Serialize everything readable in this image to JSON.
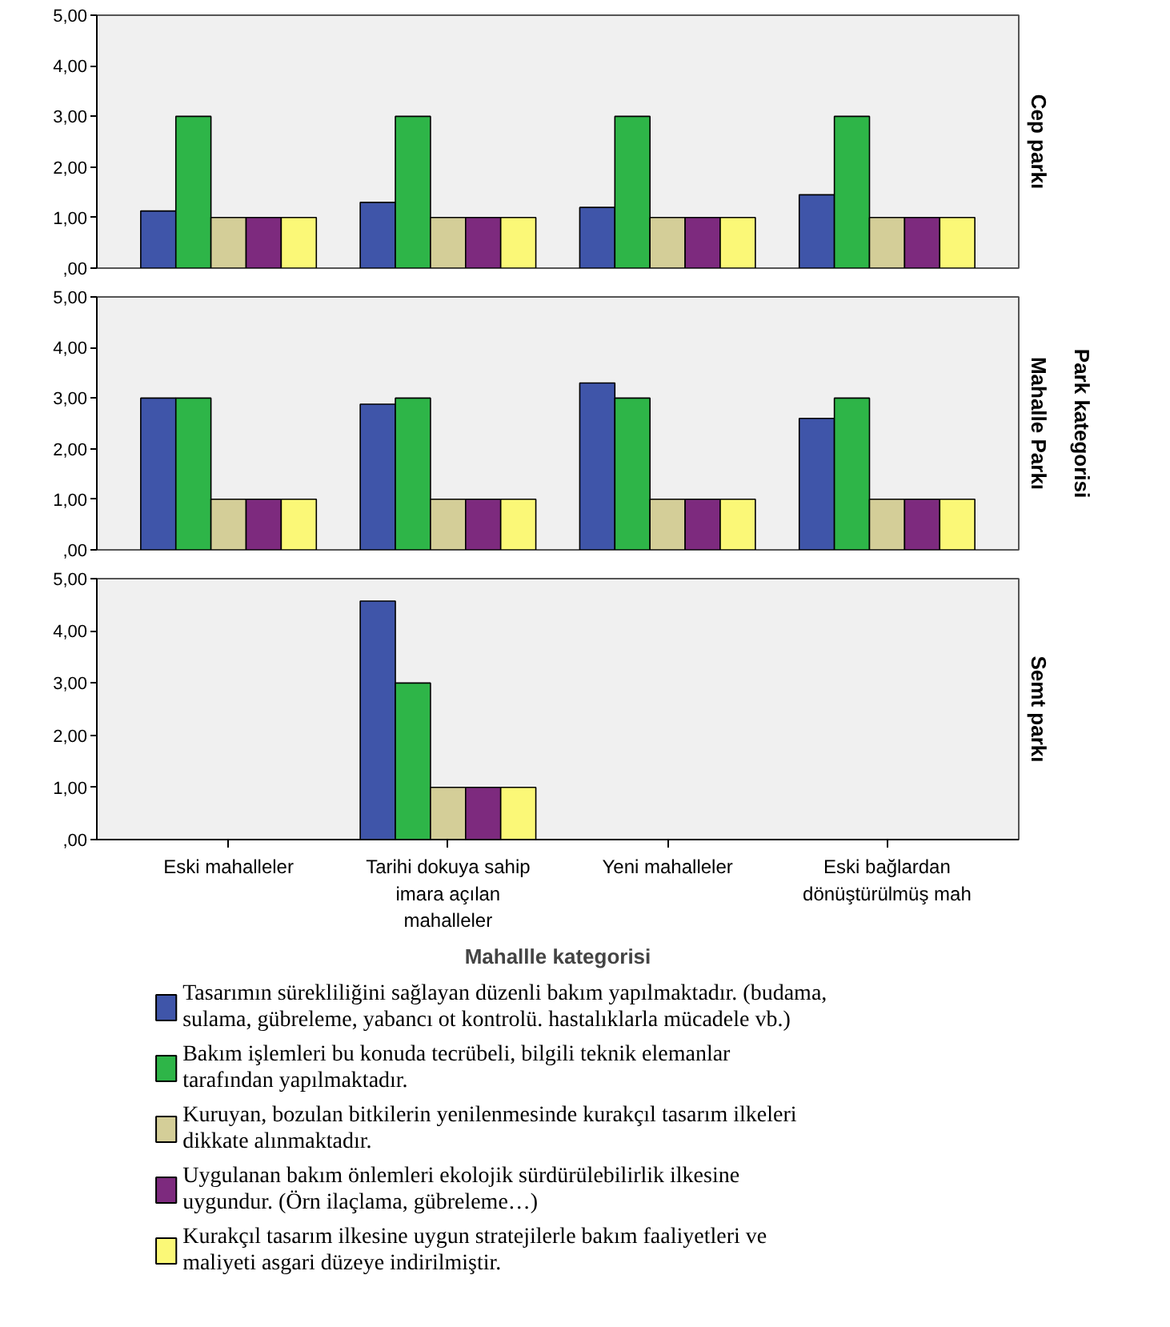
{
  "chart_data": [
    {
      "type": "bar",
      "title": "Cep parkı",
      "categories": [
        null,
        null,
        null,
        null
      ],
      "tick_labels": "y",
      "ylim": [
        0,
        5
      ],
      "yticks": [
        {
          "value": 0,
          "label": ",00"
        },
        {
          "value": 1,
          "label": "1,00"
        },
        {
          "value": 2,
          "label": "2,00"
        },
        {
          "value": 3,
          "label": "3,00"
        },
        {
          "value": 4,
          "label": "4,00"
        },
        {
          "value": 5,
          "label": "5,00"
        }
      ],
      "series": [
        {
          "color": "#3f55a9",
          "values": [
            1.13,
            1.3,
            1.2,
            1.45
          ]
        },
        {
          "color": "#2eb548",
          "values": [
            3,
            3,
            3,
            3
          ]
        },
        {
          "color": "#d4ce98",
          "values": [
            1,
            1,
            1,
            1
          ]
        },
        {
          "color": "#7d2a7e",
          "values": [
            1,
            1,
            1,
            1
          ]
        },
        {
          "color": "#fbf877",
          "values": [
            1,
            1,
            1,
            1
          ]
        }
      ]
    },
    {
      "type": "bar",
      "title": "Mahalle Parkı",
      "annotations": [
        "Park kategorisi"
      ],
      "categories": [
        null,
        null,
        null,
        null
      ],
      "tick_labels": "y",
      "ylim": [
        0,
        5
      ],
      "yticks": [
        {
          "value": 0,
          "label": ",00"
        },
        {
          "value": 1,
          "label": "1,00"
        },
        {
          "value": 2,
          "label": "2,00"
        },
        {
          "value": 3,
          "label": "3,00"
        },
        {
          "value": 4,
          "label": "4,00"
        },
        {
          "value": 5,
          "label": "5,00"
        }
      ],
      "series": [
        {
          "color": "#3f55a9",
          "values": [
            3,
            2.88,
            3.3,
            2.6
          ]
        },
        {
          "color": "#2eb548",
          "values": [
            3,
            3,
            3,
            3
          ]
        },
        {
          "color": "#d4ce98",
          "values": [
            1,
            1,
            1,
            1
          ]
        },
        {
          "color": "#7d2a7e",
          "values": [
            1,
            1,
            1,
            1
          ]
        },
        {
          "color": "#fbf877",
          "values": [
            1,
            1,
            1,
            1
          ]
        }
      ]
    },
    {
      "type": "bar",
      "title": "Semt parkı",
      "xlabel": "Mahallle kategorisi",
      "legend": "bottom",
      "categories": [
        "Eski mahalleler",
        "Tarihi dokuya sahip imara açılan mahalleler",
        "Yeni mahalleler",
        "Eski bağlardan dönüştürülmüş mah"
      ],
      "ylim": [
        0,
        5
      ],
      "yticks": [
        {
          "value": 0,
          "label": ",00"
        },
        {
          "value": 1,
          "label": "1,00"
        },
        {
          "value": 2,
          "label": "2,00"
        },
        {
          "value": 3,
          "label": "3,00"
        },
        {
          "value": 4,
          "label": "4,00"
        },
        {
          "value": 5,
          "label": "5,00"
        }
      ],
      "series": [
        {
          "name": "Tasarımın sürekliliğini sağlayan düzenli bakım yapılmaktadır. (budama, sulama, gübreleme, yabancı ot kontrolü. hastalıklarla mücadele vb.)",
          "color": "#3f55a9",
          "values": [
            null,
            4.57,
            null,
            null
          ]
        },
        {
          "name": "Bakım işlemleri bu konuda tecrübeli, bilgili teknik elemanlar tarafından yapılmaktadır.",
          "color": "#2eb548",
          "values": [
            null,
            3,
            null,
            null
          ]
        },
        {
          "name": "Kuruyan, bozulan bitkilerin yenilenmesinde kurakçıl tasarım ilkeleri dikkate alınmaktadır.",
          "color": "#d4ce98",
          "values": [
            null,
            1,
            null,
            null
          ]
        },
        {
          "name": "Uygulanan bakım önlemleri ekolojik sürdürülebilirlik ilkesine uygundur. (Örn ilaçlama, gübreleme…)",
          "color": "#7d2a7e",
          "values": [
            null,
            1,
            null,
            null
          ]
        },
        {
          "name": "Kurakçıl tasarım ilkesine uygun stratejilerle bakım faaliyetleri ve maliyeti asgari düzeye indirilmiştir.",
          "color": "#fbf877",
          "values": [
            null,
            1,
            null,
            null
          ]
        }
      ]
    }
  ]
}
